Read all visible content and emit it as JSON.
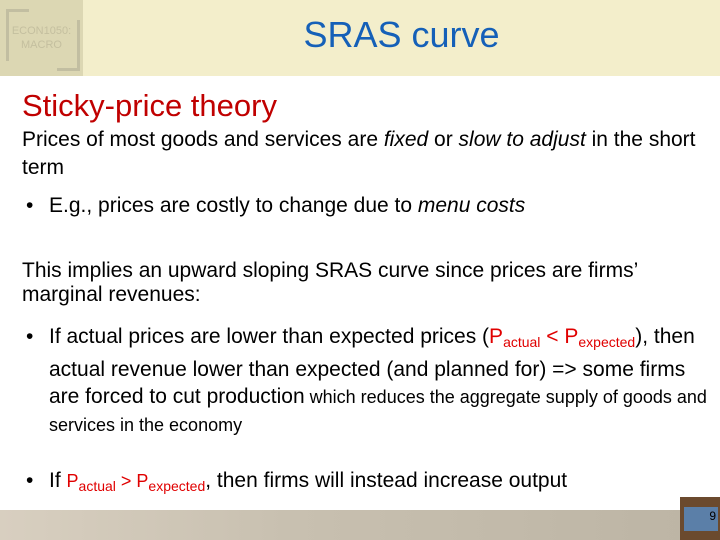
{
  "header": {
    "logo_text": "ECON1050: MACRO",
    "title": "SRAS curve"
  },
  "heading": "Sticky-price theory",
  "para1": {
    "a": "Prices of most goods and services are ",
    "b": "fixed",
    "c": " or ",
    "d": "slow to adjust",
    "e": " in the short term"
  },
  "bullet1": {
    "a": "E.g., prices are costly to change due to ",
    "b": "menu costs"
  },
  "para2": "This implies an upward sloping SRAS curve since prices are firms’ marginal revenues:",
  "bullet2": {
    "a": "If actual prices are lower than expected prices (",
    "p": "P",
    "actual": "actual",
    "lt": " <",
    "p2": "P",
    "expected": "expected",
    "b": "), then actual revenue lower than expected (and planned for) => some firms are forced to cut production",
    "c": " which reduces the aggregate supply of goods and services in the economy"
  },
  "bullet3": {
    "a": "If ",
    "p": "P",
    "actual": "actual",
    "gt": " > ",
    "p2": "P",
    "expected": "expected",
    "b": ", then firms will instead increase output"
  },
  "bullet_char": "•",
  "page_number": "9"
}
